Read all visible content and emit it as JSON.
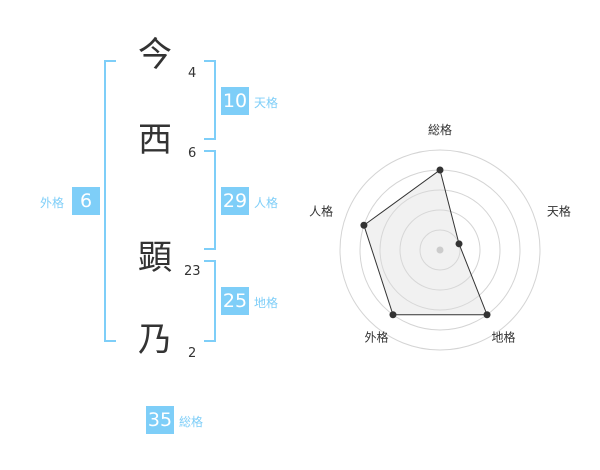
{
  "name_chars": [
    {
      "char": "今",
      "strokes": "4"
    },
    {
      "char": "西",
      "strokes": "6"
    },
    {
      "char": "顕",
      "strokes": "23"
    },
    {
      "char": "乃",
      "strokes": "2"
    }
  ],
  "kaku": {
    "tenkaku": {
      "label": "天格",
      "value": "10"
    },
    "jinkaku": {
      "label": "人格",
      "value": "29"
    },
    "chikaku": {
      "label": "地格",
      "value": "25"
    },
    "gaikaku": {
      "label": "外格",
      "value": "6"
    },
    "soukaku": {
      "label": "総格",
      "value": "35"
    }
  },
  "colors": {
    "accent": "#7ecef8",
    "text": "#333333",
    "fill": "#f0f0f0"
  },
  "chart_data": {
    "type": "radar",
    "axes": [
      "総格",
      "天格",
      "地格",
      "外格",
      "人格"
    ],
    "values": [
      4,
      1,
      4,
      4,
      4
    ],
    "range": [
      0,
      5
    ],
    "grid": true
  }
}
